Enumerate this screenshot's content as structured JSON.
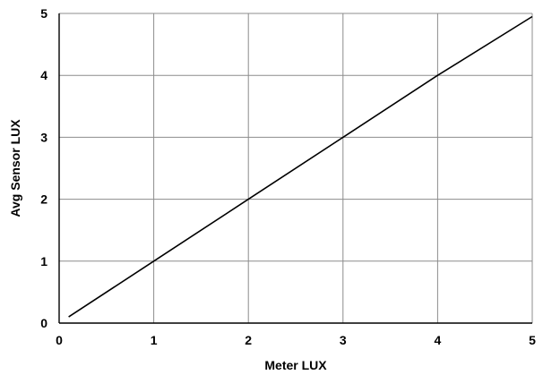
{
  "chart_data": {
    "type": "line",
    "xlabel": "Meter LUX",
    "ylabel": "Avg Sensor LUX",
    "xlim": [
      0,
      5
    ],
    "ylim": [
      0,
      5
    ],
    "xticks": [
      "0",
      "1",
      "2",
      "3",
      "4",
      "5"
    ],
    "yticks": [
      "0",
      "1",
      "2",
      "3",
      "4",
      "5"
    ],
    "grid": true,
    "series": [
      {
        "color": "#000000",
        "x": [
          0.1,
          1,
          2,
          3,
          4,
          5
        ],
        "y": [
          0.1,
          1,
          2,
          3,
          4,
          4.95
        ]
      }
    ]
  }
}
